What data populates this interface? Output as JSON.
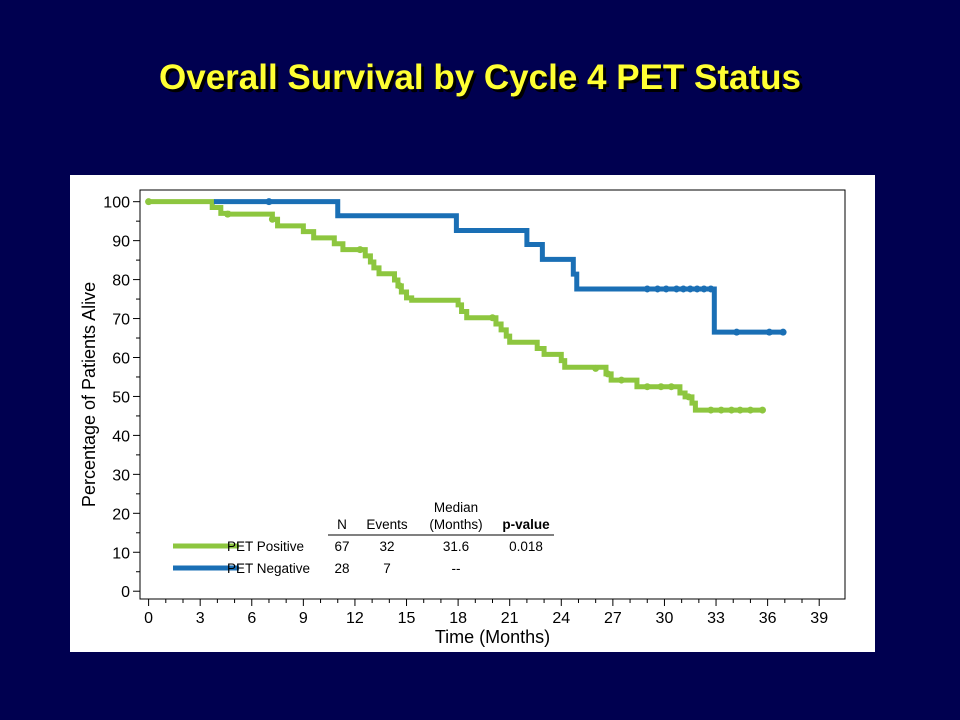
{
  "slide": {
    "title": "Overall Survival by Cycle 4 PET Status"
  },
  "colors": {
    "background": "#000050",
    "title": "#ffff33",
    "pet_positive": "#8dc63f",
    "pet_negative": "#1a6fb5"
  },
  "chart_data": {
    "type": "line",
    "subtype": "kaplan-meier step",
    "xlabel": "Time (Months)",
    "ylabel": "Percentage of Patients Alive",
    "xlim": [
      -0.5,
      40.5
    ],
    "ylim": [
      -2,
      103
    ],
    "xticks": [
      0,
      3,
      6,
      9,
      12,
      15,
      18,
      21,
      24,
      27,
      30,
      33,
      36,
      39
    ],
    "yticks": [
      0,
      10,
      20,
      30,
      40,
      50,
      60,
      70,
      80,
      90,
      100
    ],
    "grid": false,
    "series": [
      {
        "name": "PET Positive",
        "color": "#8dc63f",
        "steps": [
          [
            0,
            100
          ],
          [
            3.7,
            98.5
          ],
          [
            4.2,
            97
          ],
          [
            4.6,
            96.8
          ],
          [
            6.8,
            96.8
          ],
          [
            7.2,
            95.5
          ],
          [
            7.5,
            93.8
          ],
          [
            9.0,
            92.3
          ],
          [
            9.6,
            90.7
          ],
          [
            10.8,
            89.2
          ],
          [
            11.3,
            87.7
          ],
          [
            12.6,
            86.1
          ],
          [
            12.9,
            84.5
          ],
          [
            13.1,
            83.0
          ],
          [
            13.4,
            81.5
          ],
          [
            14.3,
            79.9
          ],
          [
            14.5,
            78.4
          ],
          [
            14.7,
            76.8
          ],
          [
            15.0,
            75.3
          ],
          [
            15.3,
            74.7
          ],
          [
            18.0,
            73.5
          ],
          [
            18.2,
            71.8
          ],
          [
            18.5,
            70.2
          ],
          [
            20.2,
            68.6
          ],
          [
            20.5,
            67.1
          ],
          [
            20.8,
            65.5
          ],
          [
            21.0,
            63.9
          ],
          [
            22.6,
            62.3
          ],
          [
            23.0,
            60.8
          ],
          [
            24.0,
            59.2
          ],
          [
            24.2,
            57.5
          ],
          [
            26.6,
            55.8
          ],
          [
            26.9,
            54.2
          ],
          [
            28.4,
            52.5
          ],
          [
            30.9,
            50.9
          ],
          [
            31.2,
            49.9
          ],
          [
            31.6,
            48.3
          ],
          [
            31.8,
            46.5
          ],
          [
            35.7,
            46.5
          ]
        ],
        "censored": [
          [
            0,
            100
          ],
          [
            4.6,
            96.8
          ],
          [
            7.2,
            95.5
          ],
          [
            12.3,
            87.7
          ],
          [
            14.6,
            78.4
          ],
          [
            20.0,
            70.2
          ],
          [
            26.0,
            57.2
          ],
          [
            26.7,
            55.8
          ],
          [
            27.5,
            54.2
          ],
          [
            29.0,
            52.5
          ],
          [
            29.8,
            52.5
          ],
          [
            30.4,
            52.5
          ],
          [
            31.4,
            49.9
          ],
          [
            32.7,
            46.5
          ],
          [
            33.3,
            46.5
          ],
          [
            33.9,
            46.5
          ],
          [
            34.4,
            46.5
          ],
          [
            35.0,
            46.5
          ],
          [
            35.7,
            46.5
          ]
        ]
      },
      {
        "name": "PET Negative",
        "color": "#1a6fb5",
        "steps": [
          [
            3.8,
            100
          ],
          [
            11.0,
            96.4
          ],
          [
            17.9,
            92.6
          ],
          [
            22.0,
            89.0
          ],
          [
            22.9,
            85.2
          ],
          [
            24.7,
            81.4
          ],
          [
            24.9,
            77.6
          ],
          [
            32.9,
            66.5
          ],
          [
            37.0,
            66.5
          ]
        ],
        "censored": [
          [
            7.0,
            100
          ],
          [
            29.0,
            77.6
          ],
          [
            29.6,
            77.6
          ],
          [
            30.1,
            77.6
          ],
          [
            30.7,
            77.6
          ],
          [
            31.1,
            77.6
          ],
          [
            31.5,
            77.6
          ],
          [
            31.9,
            77.6
          ],
          [
            32.3,
            77.6
          ],
          [
            32.7,
            77.6
          ],
          [
            34.2,
            66.5
          ],
          [
            36.1,
            66.5
          ],
          [
            36.9,
            66.5
          ]
        ]
      }
    ]
  },
  "legend_table": {
    "headers": {
      "n": "N",
      "events": "Events",
      "median_line1": "Median",
      "median_line2": "(Months)",
      "pvalue": "p-value"
    },
    "rows": [
      {
        "label": "PET Positive",
        "n": "67",
        "events": "32",
        "median": "31.6",
        "pvalue": "0.018"
      },
      {
        "label": "PET Negative",
        "n": "28",
        "events": "7",
        "median": "--",
        "pvalue": ""
      }
    ]
  }
}
